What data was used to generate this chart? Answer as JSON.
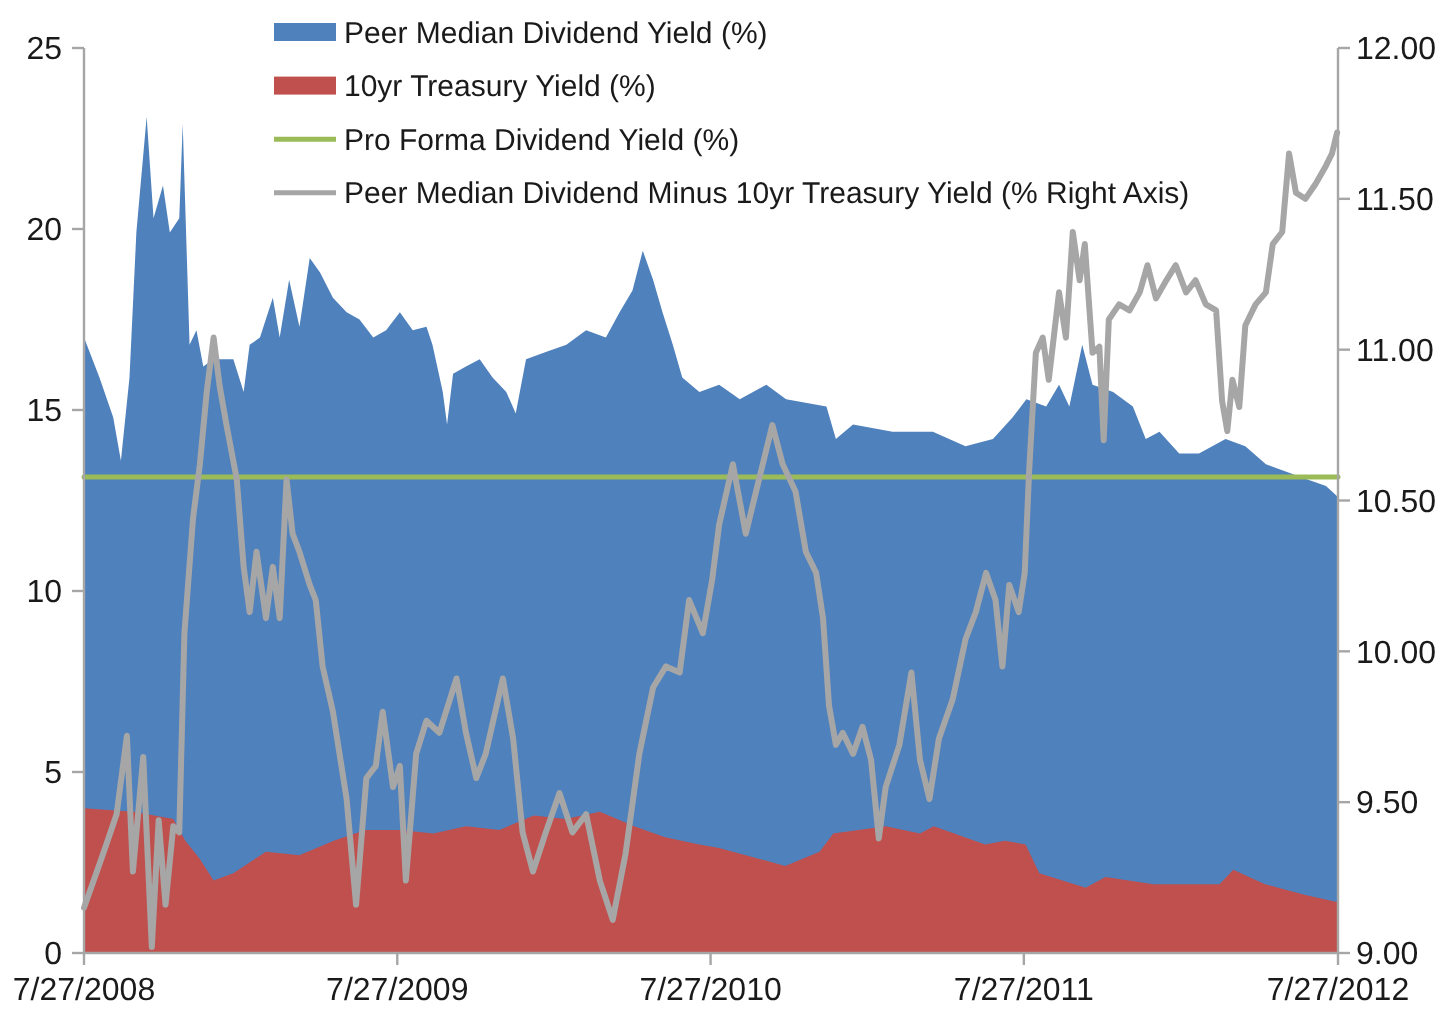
{
  "chart_data": {
    "type": "area",
    "xlim": [
      "2008-07-27",
      "2012-07-27"
    ],
    "xticks": [
      {
        "value": "2008-07-27",
        "label": "7/27/2008"
      },
      {
        "value": "2009-07-27",
        "label": "7/27/2009"
      },
      {
        "value": "2010-07-27",
        "label": "7/27/2010"
      },
      {
        "value": "2011-07-27",
        "label": "7/27/2011"
      },
      {
        "value": "2012-07-27",
        "label": "7/27/2012"
      }
    ],
    "ylim": [
      0,
      25
    ],
    "yticks": [
      0,
      5,
      10,
      15,
      20,
      25
    ],
    "y2lim": [
      9,
      12
    ],
    "y2ticks": [
      {
        "value": 9,
        "label": "9.00"
      },
      {
        "value": 9.5,
        "label": "9.50"
      },
      {
        "value": 10,
        "label": "10.00"
      },
      {
        "value": 10.5,
        "label": "10.50"
      },
      {
        "value": 11,
        "label": "11.00"
      },
      {
        "value": 11.5,
        "label": "11.50"
      },
      {
        "value": 12,
        "label": "12.00"
      }
    ],
    "legend": "top",
    "series": [
      {
        "name": "Peer Median Dividend Yield (%)",
        "color": "#4f81bd",
        "x": [
          "2008-07-27",
          "2008-08-14",
          "2008-08-30",
          "2008-09-08",
          "2008-09-18",
          "2008-09-26",
          "2008-10-08",
          "2008-10-16",
          "2008-10-27",
          "2008-11-04",
          "2008-11-15",
          "2008-11-19",
          "2008-11-27",
          "2008-12-05",
          "2008-12-13",
          "2008-12-25",
          "2009-01-17",
          "2009-01-29",
          "2009-02-05",
          "2009-02-17",
          "2009-03-04",
          "2009-03-12",
          "2009-03-23",
          "2009-04-04",
          "2009-04-16",
          "2009-04-28",
          "2009-05-13",
          "2009-05-29",
          "2009-06-13",
          "2009-06-29",
          "2009-07-14",
          "2009-07-30",
          "2009-08-14",
          "2009-08-30",
          "2009-09-06",
          "2009-09-18",
          "2009-09-23",
          "2009-09-30",
          "2009-10-15",
          "2009-10-31",
          "2009-11-15",
          "2009-12-01",
          "2009-12-12",
          "2009-12-24",
          "2010-01-16",
          "2010-02-09",
          "2010-03-04",
          "2010-03-27",
          "2010-04-12",
          "2010-04-27",
          "2010-05-09",
          "2010-05-21",
          "2010-06-01",
          "2010-06-13",
          "2010-06-24",
          "2010-07-14",
          "2010-08-06",
          "2010-08-30",
          "2010-09-30",
          "2010-10-23",
          "2010-12-09",
          "2010-12-20",
          "2011-01-09",
          "2011-02-24",
          "2011-04-12",
          "2011-05-20",
          "2011-06-21",
          "2011-07-14",
          "2011-07-30",
          "2011-08-22",
          "2011-09-06",
          "2011-09-18",
          "2011-10-03",
          "2011-10-15",
          "2011-11-08",
          "2011-12-01",
          "2011-12-16",
          "2012-01-01",
          "2012-01-24",
          "2012-02-16",
          "2012-03-18",
          "2012-04-10",
          "2012-05-04",
          "2012-05-27",
          "2012-06-19",
          "2012-07-13",
          "2012-07-27"
        ],
        "values": [
          17.0,
          15.9,
          14.8,
          13.6,
          15.9,
          19.9,
          23.1,
          20.3,
          21.2,
          19.9,
          20.3,
          22.9,
          16.8,
          17.2,
          16.2,
          16.4,
          16.4,
          15.5,
          16.8,
          17.0,
          18.1,
          17.0,
          18.6,
          17.3,
          19.2,
          18.8,
          18.1,
          17.7,
          17.5,
          17.0,
          17.2,
          17.7,
          17.2,
          17.3,
          16.8,
          15.5,
          14.6,
          16.0,
          16.2,
          16.4,
          15.9,
          15.5,
          14.9,
          16.4,
          16.6,
          16.8,
          17.2,
          17.0,
          17.7,
          18.3,
          19.4,
          18.6,
          17.7,
          16.8,
          15.9,
          15.5,
          15.7,
          15.3,
          15.7,
          15.3,
          15.1,
          14.2,
          14.6,
          14.4,
          14.4,
          14.0,
          14.2,
          14.8,
          15.3,
          15.1,
          15.7,
          15.1,
          16.8,
          15.7,
          15.5,
          15.1,
          14.2,
          14.4,
          13.8,
          13.8,
          14.2,
          14.0,
          13.5,
          13.3,
          13.1,
          12.9,
          12.6
        ]
      },
      {
        "name": "10yr Treasury Yield (%)",
        "color": "#c0504d",
        "x": [
          "2008-07-27",
          "2008-09-23",
          "2008-11-08",
          "2008-11-22",
          "2008-12-09",
          "2008-12-25",
          "2009-01-17",
          "2009-02-24",
          "2009-04-04",
          "2009-05-14",
          "2009-06-20",
          "2009-07-30",
          "2009-09-07",
          "2009-10-15",
          "2009-11-23",
          "2010-01-02",
          "2010-02-08",
          "2010-03-20",
          "2010-04-29",
          "2010-06-04",
          "2010-07-14",
          "2010-08-06",
          "2010-09-22",
          "2010-10-22",
          "2010-12-01",
          "2010-12-17",
          "2011-02-16",
          "2011-03-28",
          "2011-04-13",
          "2011-06-12",
          "2011-07-05",
          "2011-07-29",
          "2011-08-14",
          "2011-10-07",
          "2011-10-30",
          "2011-12-25",
          "2012-03-11",
          "2012-03-27",
          "2012-05-03",
          "2012-06-19",
          "2012-07-27"
        ],
        "values": [
          4.0,
          3.9,
          3.7,
          3.1,
          2.6,
          2.0,
          2.2,
          2.8,
          2.7,
          3.1,
          3.4,
          3.4,
          3.3,
          3.5,
          3.4,
          3.8,
          3.7,
          3.9,
          3.5,
          3.2,
          3.0,
          2.9,
          2.6,
          2.4,
          2.8,
          3.3,
          3.5,
          3.3,
          3.5,
          3.0,
          3.1,
          3.0,
          2.2,
          1.8,
          2.1,
          1.9,
          1.9,
          2.3,
          1.9,
          1.6,
          1.4
        ]
      },
      {
        "name": "Pro Forma Dividend Yield (%)",
        "type": "line",
        "color": "#9bbb59",
        "x": [
          "2008-07-27",
          "2012-07-27"
        ],
        "values": [
          13.15,
          13.15
        ]
      },
      {
        "name": "Peer Median Dividend Minus 10yr Treasury Yield (% Right Axis)",
        "type": "line",
        "axis": "y2",
        "color": "#a6a6a6",
        "x": [
          "2008-07-27",
          "2008-08-11",
          "2008-08-22",
          "2008-09-03",
          "2008-09-15",
          "2008-09-22",
          "2008-10-04",
          "2008-10-14",
          "2008-10-22",
          "2008-10-30",
          "2008-11-08",
          "2008-11-15",
          "2008-11-21",
          "2008-12-01",
          "2008-12-09",
          "2008-12-17",
          "2008-12-25",
          "2009-01-01",
          "2009-01-09",
          "2009-01-21",
          "2009-01-29",
          "2009-02-05",
          "2009-02-13",
          "2009-02-24",
          "2009-03-04",
          "2009-03-12",
          "2009-03-20",
          "2009-03-27",
          "2009-04-04",
          "2009-04-16",
          "2009-04-23",
          "2009-05-01",
          "2009-05-13",
          "2009-05-29",
          "2009-06-09",
          "2009-06-21",
          "2009-07-02",
          "2009-07-10",
          "2009-07-22",
          "2009-07-30",
          "2009-08-06",
          "2009-08-18",
          "2009-08-30",
          "2009-09-14",
          "2009-10-04",
          "2009-10-15",
          "2009-10-27",
          "2009-11-07",
          "2009-11-27",
          "2009-12-09",
          "2009-12-20",
          "2010-01-01",
          "2010-01-16",
          "2010-02-01",
          "2010-02-16",
          "2010-03-04",
          "2010-03-20",
          "2010-04-04",
          "2010-04-19",
          "2010-05-05",
          "2010-05-21",
          "2010-06-05",
          "2010-06-21",
          "2010-07-02",
          "2010-07-18",
          "2010-07-29",
          "2010-08-06",
          "2010-08-22",
          "2010-09-06",
          "2010-09-18",
          "2010-10-07",
          "2010-10-19",
          "2010-11-03",
          "2010-11-15",
          "2010-11-27",
          "2010-12-05",
          "2010-12-12",
          "2010-12-20",
          "2010-12-28",
          "2011-01-09",
          "2011-01-20",
          "2011-01-30",
          "2011-02-08",
          "2011-02-16",
          "2011-03-04",
          "2011-03-18",
          "2011-03-28",
          "2011-04-08",
          "2011-04-19",
          "2011-05-05",
          "2011-05-20",
          "2011-06-01",
          "2011-06-13",
          "2011-06-24",
          "2011-07-02",
          "2011-07-10",
          "2011-07-21",
          "2011-07-28",
          "2011-08-02",
          "2011-08-10",
          "2011-08-18",
          "2011-08-25",
          "2011-09-06",
          "2011-09-14",
          "2011-09-22",
          "2011-09-30",
          "2011-10-06",
          "2011-10-15",
          "2011-10-23",
          "2011-10-28",
          "2011-11-03",
          "2011-11-15",
          "2011-11-27",
          "2011-12-09",
          "2011-12-18",
          "2011-12-28",
          "2012-01-09",
          "2012-01-20",
          "2012-02-01",
          "2012-02-12",
          "2012-02-24",
          "2012-03-07",
          "2012-03-14",
          "2012-03-20",
          "2012-03-26",
          "2012-04-03",
          "2012-04-10",
          "2012-04-22",
          "2012-05-04",
          "2012-05-12",
          "2012-05-23",
          "2012-05-31",
          "2012-06-08",
          "2012-06-19",
          "2012-07-01",
          "2012-07-13",
          "2012-07-20",
          "2012-07-26"
        ],
        "values": [
          9.15,
          9.27,
          9.36,
          9.46,
          9.72,
          9.27,
          9.65,
          9.02,
          9.44,
          9.16,
          9.42,
          9.4,
          10.06,
          10.44,
          10.62,
          10.86,
          11.04,
          10.88,
          10.75,
          10.57,
          10.28,
          10.13,
          10.33,
          10.11,
          10.28,
          10.11,
          10.57,
          10.39,
          10.33,
          10.22,
          10.17,
          9.95,
          9.8,
          9.51,
          9.16,
          9.58,
          9.62,
          9.8,
          9.55,
          9.62,
          9.24,
          9.66,
          9.77,
          9.73,
          9.91,
          9.73,
          9.58,
          9.66,
          9.91,
          9.71,
          9.4,
          9.27,
          9.4,
          9.53,
          9.4,
          9.46,
          9.24,
          9.11,
          9.33,
          9.66,
          9.88,
          9.95,
          9.93,
          10.17,
          10.06,
          10.24,
          10.42,
          10.62,
          10.39,
          10.53,
          10.75,
          10.62,
          10.53,
          10.33,
          10.26,
          10.11,
          9.82,
          9.69,
          9.73,
          9.66,
          9.75,
          9.64,
          9.38,
          9.55,
          9.69,
          9.93,
          9.64,
          9.51,
          9.71,
          9.84,
          10.04,
          10.13,
          10.26,
          10.17,
          9.95,
          10.22,
          10.13,
          10.26,
          10.59,
          10.99,
          11.04,
          10.9,
          11.19,
          11.04,
          11.39,
          11.23,
          11.35,
          10.99,
          11.01,
          10.7,
          11.1,
          11.15,
          11.13,
          11.19,
          11.28,
          11.17,
          11.23,
          11.28,
          11.19,
          11.23,
          11.15,
          11.13,
          10.83,
          10.73,
          10.9,
          10.81,
          11.08,
          11.15,
          11.19,
          11.35,
          11.39,
          11.65,
          11.52,
          11.5,
          11.55,
          11.61,
          11.65,
          11.72
        ]
      }
    ]
  }
}
